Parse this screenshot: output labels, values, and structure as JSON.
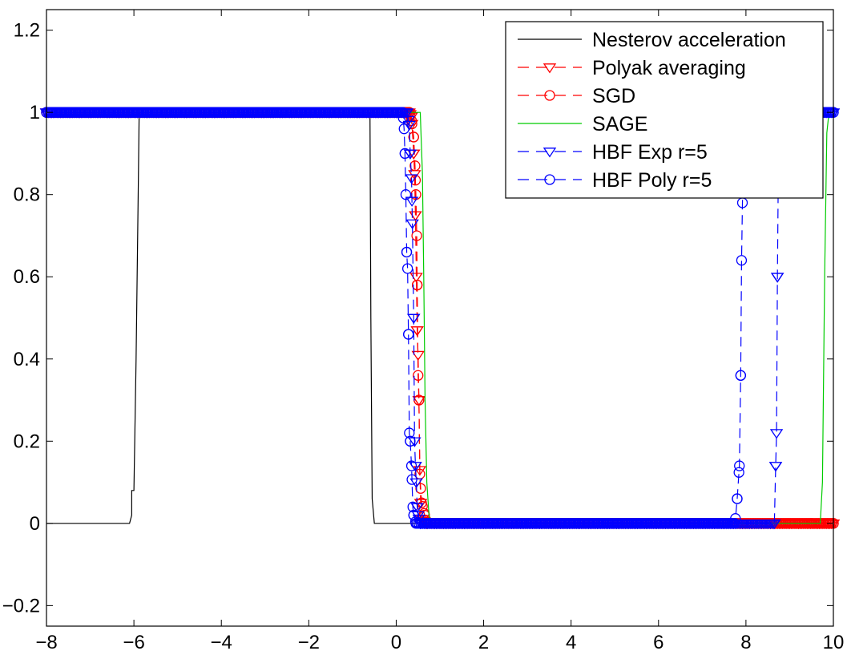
{
  "chart_data": {
    "type": "line",
    "title": "",
    "xlabel": "",
    "ylabel": "",
    "xlim": [
      -8,
      10
    ],
    "ylim": [
      -0.25,
      1.25
    ],
    "xticks": [
      -8,
      -6,
      -4,
      -2,
      0,
      2,
      4,
      6,
      8,
      10
    ],
    "yticks": [
      -0.2,
      0,
      0.2,
      0.4,
      0.6,
      0.8,
      1,
      1.2
    ],
    "xtick_labels": [
      "−8",
      "−6",
      "−4",
      "−2",
      "0",
      "2",
      "4",
      "6",
      "8",
      "10"
    ],
    "ytick_labels": [
      "−0.2",
      "0",
      "0.2",
      "0.4",
      "0.6",
      "0.8",
      "1",
      "1.2"
    ],
    "grid": false,
    "legend_position": "top-right",
    "series": [
      {
        "name": "Nesterov acceleration",
        "color": "#000000",
        "dash": "solid",
        "marker": "none",
        "x": [
          -8,
          -6.1,
          -6.05,
          -6.05,
          -6.0,
          -5.95,
          -5.9,
          -5.88,
          -0.6,
          -0.58,
          -0.55,
          -0.5,
          10
        ],
        "y": [
          0,
          0,
          0.02,
          0.08,
          0.08,
          0.4,
          0.82,
          1,
          1,
          0.5,
          0.06,
          0,
          0
        ]
      },
      {
        "name": "Polyak averaging",
        "color": "#ff0000",
        "dash": "dashed",
        "marker": "triangle-down",
        "x": [
          -8,
          0.3,
          0.35,
          0.4,
          0.42,
          0.44,
          0.46,
          0.48,
          0.5,
          0.52,
          0.54,
          0.56,
          0.6,
          0.7,
          9.2,
          10
        ],
        "y": [
          1,
          1,
          0.99,
          0.9,
          0.85,
          0.75,
          0.6,
          0.47,
          0.41,
          0.3,
          0.13,
          0.05,
          0.01,
          0,
          0,
          0
        ]
      },
      {
        "name": "SGD",
        "color": "#ff0000",
        "dash": "dashed",
        "marker": "circle",
        "x": [
          -8,
          0.3,
          0.35,
          0.4,
          0.43,
          0.45,
          0.47,
          0.48,
          0.5,
          0.52,
          0.54,
          0.58,
          0.65,
          0.7,
          9.5,
          10
        ],
        "y": [
          1,
          1,
          0.98,
          0.94,
          0.87,
          0.8,
          0.7,
          0.58,
          0.36,
          0.3,
          0.12,
          0.05,
          0.02,
          0,
          0,
          0
        ]
      },
      {
        "name": "SAGE",
        "color": "#00cc00",
        "dash": "solid",
        "marker": "none",
        "x": [
          -8,
          0.55,
          0.6,
          0.63,
          0.66,
          0.7,
          0.75,
          0.8,
          9.7,
          9.75,
          9.8,
          9.85,
          9.9
        ],
        "y": [
          1,
          1,
          0.85,
          0.6,
          0.3,
          0.1,
          0.02,
          0,
          0,
          0.1,
          0.6,
          0.95,
          1
        ]
      },
      {
        "name": "HBF Exp r=5",
        "color": "#0000ff",
        "dash": "dashed",
        "marker": "triangle-down",
        "x": [
          -8,
          0.25,
          0.3,
          0.32,
          0.35,
          0.37,
          0.4,
          0.42,
          0.44,
          0.46,
          0.48,
          0.5,
          0.55,
          8.65,
          8.68,
          8.7,
          8.72,
          8.74,
          8.76,
          8.8,
          10
        ],
        "y": [
          1,
          1,
          0.97,
          0.9,
          0.84,
          0.73,
          0.5,
          0.2,
          0.14,
          0.1,
          0.04,
          0.02,
          0,
          0,
          0.14,
          0.22,
          0.6,
          0.85,
          0.99,
          1,
          1
        ]
      },
      {
        "name": "HBF Poly r=5",
        "color": "#0000ff",
        "dash": "dashed",
        "marker": "circle",
        "x": [
          -8,
          0.15,
          0.18,
          0.2,
          0.22,
          0.24,
          0.26,
          0.28,
          0.3,
          0.32,
          0.35,
          0.38,
          0.4,
          0.45,
          7.75,
          7.8,
          7.85,
          7.88,
          7.9,
          7.93,
          7.96,
          8.0,
          10
        ],
        "y": [
          1,
          1,
          0.96,
          0.9,
          0.8,
          0.66,
          0.62,
          0.46,
          0.22,
          0.2,
          0.14,
          0.04,
          0.02,
          0,
          0,
          0.06,
          0.14,
          0.36,
          0.64,
          0.85,
          0.98,
          1,
          1
        ]
      }
    ]
  }
}
